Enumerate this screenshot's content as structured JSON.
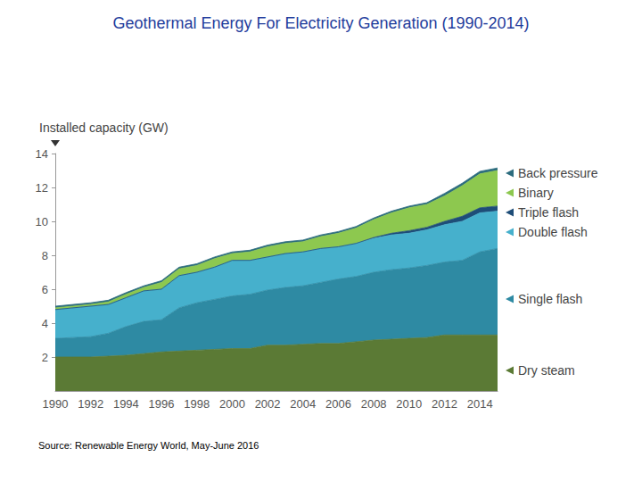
{
  "chart_data": {
    "type": "area",
    "title": "Geothermal Energy For Electricity Generation (1990-2014)",
    "y_label": "Installed capacity (GW)",
    "annotation": "Source: Renewable Energy World, May-June 2016",
    "categories": [
      "1990",
      null,
      "1992",
      null,
      "1994",
      null,
      "1996",
      null,
      "1998",
      null,
      "2000",
      null,
      "2002",
      null,
      "2004",
      null,
      "2006",
      null,
      "2008",
      null,
      "2010",
      null,
      "2012",
      null,
      "2014",
      null
    ],
    "series": [
      {
        "name": "Dry steam",
        "color": "#5b7a35",
        "values": [
          2.0,
          2.0,
          2.0,
          2.05,
          2.1,
          2.2,
          2.3,
          2.35,
          2.4,
          2.45,
          2.5,
          2.5,
          2.7,
          2.7,
          2.75,
          2.8,
          2.8,
          2.9,
          3.0,
          3.05,
          3.1,
          3.15,
          3.3,
          3.3,
          3.3,
          3.3
        ]
      },
      {
        "name": "Single flash",
        "color": "#2e8aa3",
        "values": [
          1.1,
          1.15,
          1.2,
          1.35,
          1.7,
          1.9,
          1.9,
          2.55,
          2.8,
          2.95,
          3.1,
          3.2,
          3.25,
          3.4,
          3.45,
          3.6,
          3.8,
          3.85,
          4.0,
          4.1,
          4.15,
          4.25,
          4.3,
          4.4,
          4.9,
          5.1
        ]
      },
      {
        "name": "Double flash",
        "color": "#46b0cc",
        "values": [
          1.7,
          1.75,
          1.8,
          1.7,
          1.7,
          1.8,
          1.8,
          1.9,
          1.8,
          1.9,
          2.1,
          2.0,
          1.95,
          2.0,
          2.0,
          2.0,
          1.9,
          1.95,
          2.0,
          2.05,
          2.05,
          2.1,
          2.2,
          2.3,
          2.3,
          2.2
        ]
      },
      {
        "name": "Triple flash",
        "color": "#1e4d78",
        "values": [
          0,
          0,
          0,
          0,
          0,
          0,
          0,
          0,
          0,
          0,
          0,
          0,
          0,
          0,
          0,
          0,
          0,
          0,
          0.05,
          0.1,
          0.15,
          0.15,
          0.2,
          0.3,
          0.3,
          0.3
        ]
      },
      {
        "name": "Binary",
        "color": "#8dc84f",
        "values": [
          0.1,
          0.1,
          0.1,
          0.15,
          0.2,
          0.2,
          0.4,
          0.4,
          0.4,
          0.5,
          0.4,
          0.5,
          0.6,
          0.6,
          0.6,
          0.7,
          0.8,
          0.9,
          1.05,
          1.2,
          1.35,
          1.35,
          1.5,
          1.8,
          2.0,
          2.1
        ]
      },
      {
        "name": "Back pressure",
        "color": "#2c6c7e",
        "values": [
          0.1,
          0.1,
          0.1,
          0.1,
          0.1,
          0.1,
          0.1,
          0.1,
          0.1,
          0.1,
          0.1,
          0.1,
          0.1,
          0.1,
          0.1,
          0.1,
          0.1,
          0.1,
          0.1,
          0.1,
          0.1,
          0.1,
          0.15,
          0.15,
          0.15,
          0.15
        ]
      }
    ],
    "ylim": [
      0,
      14
    ],
    "yticks": [
      2,
      4,
      6,
      8,
      10,
      12,
      14
    ],
    "stacked": true,
    "grid": false
  }
}
